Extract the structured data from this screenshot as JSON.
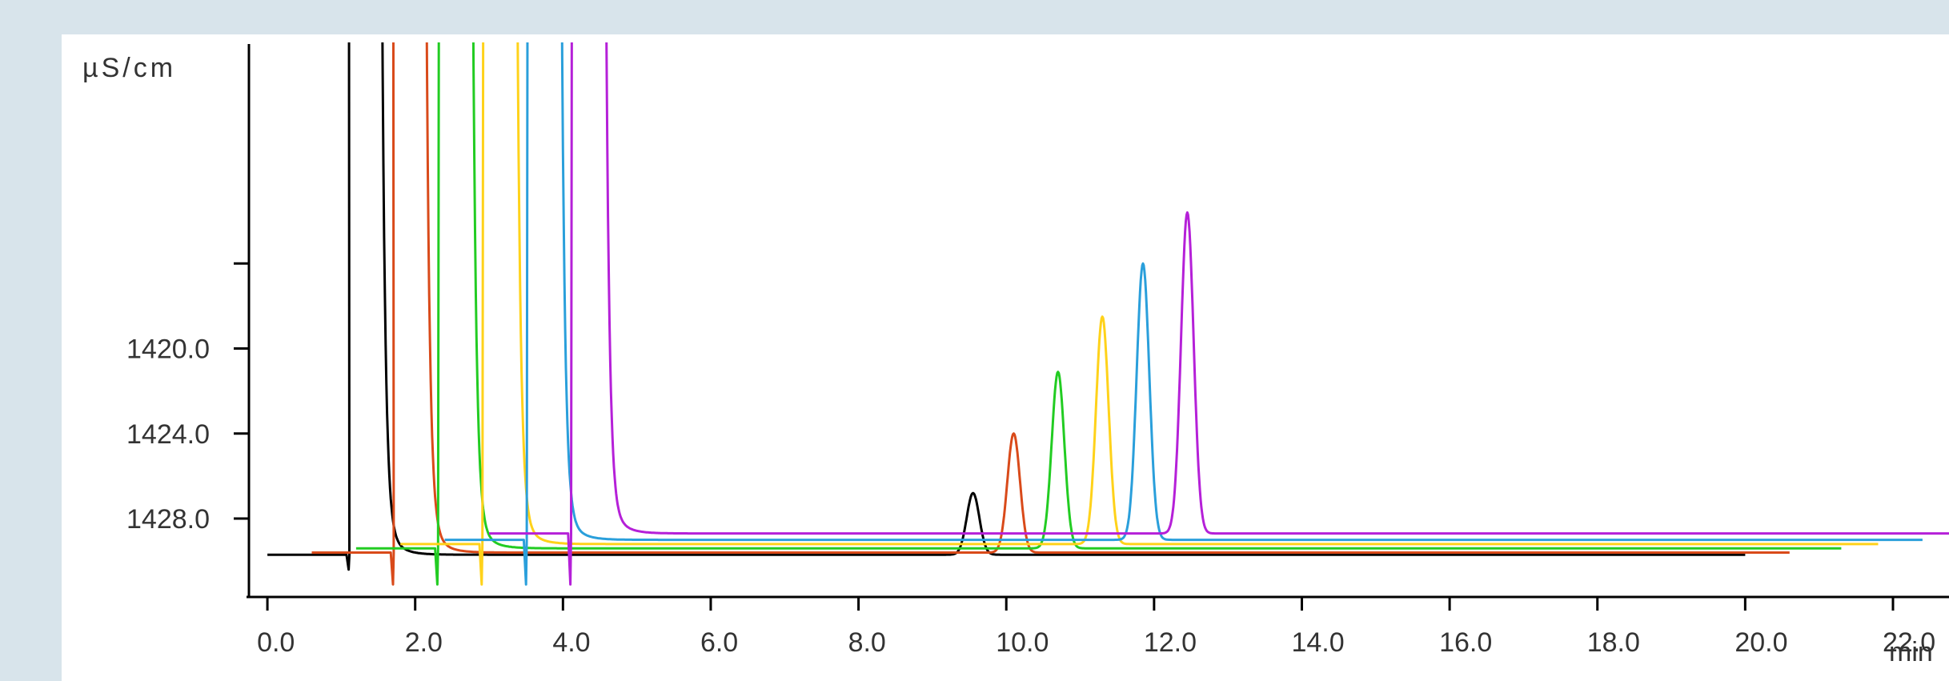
{
  "chart_data": {
    "type": "line",
    "xlabel": "min",
    "ylabel": "µS/cm",
    "xlim": [
      -0.25,
      23.3
    ],
    "ylim": [
      1431.2,
      1405.6
    ],
    "y_inverted": true,
    "x_ticks": [
      {
        "value": 0,
        "label": "0.0"
      },
      {
        "value": 2,
        "label": "2.0"
      },
      {
        "value": 4,
        "label": "4.0"
      },
      {
        "value": 6,
        "label": "6.0"
      },
      {
        "value": 8,
        "label": "8.0"
      },
      {
        "value": 10,
        "label": "10.0"
      },
      {
        "value": 12,
        "label": "12.0"
      },
      {
        "value": 14,
        "label": "14.0"
      },
      {
        "value": 16,
        "label": "16.0"
      },
      {
        "value": 18,
        "label": "18.0"
      },
      {
        "value": 20,
        "label": "20.0"
      },
      {
        "value": 22,
        "label": "22.0"
      }
    ],
    "y_ticks": [
      {
        "value": 1416.0,
        "label": ""
      },
      {
        "value": 1420.0,
        "label": "1420.0"
      },
      {
        "value": 1424.0,
        "label": "1424.0"
      },
      {
        "value": 1428.0,
        "label": "1428.0"
      }
    ],
    "grid": false,
    "series": [
      {
        "color": "#000000",
        "start": 0.0,
        "end": 20.0,
        "baseline": 1429.7,
        "dip_x": 1.1,
        "dip_y": 1430.4,
        "spike_x": 1.1,
        "tail_x": 1.5,
        "peak_x": 9.55,
        "peak_y": 1426.8
      },
      {
        "color": "#d94a1a",
        "start": 0.6,
        "end": 20.6,
        "baseline": 1429.6,
        "dip_x": 1.7,
        "dip_y": 1431.1,
        "spike_x": 1.7,
        "tail_x": 2.1,
        "peak_x": 10.1,
        "peak_y": 1424.0
      },
      {
        "color": "#22cc22",
        "start": 1.2,
        "end": 21.3,
        "baseline": 1429.4,
        "dip_x": 2.3,
        "dip_y": 1431.1,
        "spike_x": 2.33,
        "tail_x": 2.73,
        "peak_x": 10.7,
        "peak_y": 1421.1
      },
      {
        "color": "#ffd21a",
        "start": 1.8,
        "end": 21.8,
        "baseline": 1429.2,
        "dip_x": 2.9,
        "dip_y": 1431.1,
        "spike_x": 2.93,
        "tail_x": 3.33,
        "peak_x": 11.3,
        "peak_y": 1418.5
      },
      {
        "color": "#2a9fdb",
        "start": 2.4,
        "end": 22.4,
        "baseline": 1429.0,
        "dip_x": 3.5,
        "dip_y": 1431.1,
        "spike_x": 3.53,
        "tail_x": 3.93,
        "peak_x": 11.85,
        "peak_y": 1416.0
      },
      {
        "color": "#b520d8",
        "start": 3.0,
        "end": 23.0,
        "baseline": 1428.7,
        "dip_x": 4.1,
        "dip_y": 1431.1,
        "spike_x": 4.13,
        "tail_x": 4.53,
        "peak_x": 12.45,
        "peak_y": 1413.6
      }
    ]
  }
}
